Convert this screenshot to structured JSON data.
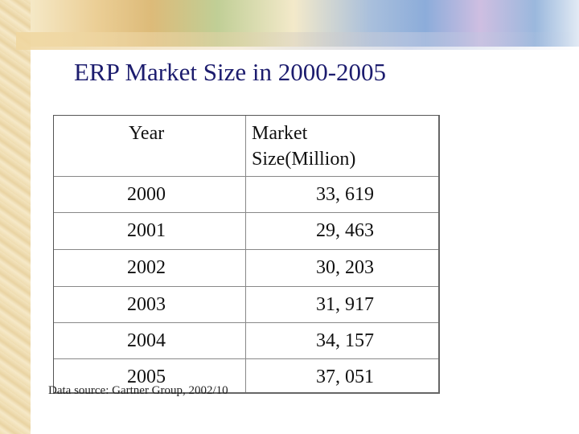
{
  "title": "ERP Market Size in 2000-2005",
  "table": {
    "header": [
      "Year",
      "Market Size(Million)"
    ],
    "rows": [
      [
        "2000",
        "33, 619"
      ],
      [
        "2001",
        "29, 463"
      ],
      [
        "2002",
        "30, 203"
      ],
      [
        "2003",
        "31, 917"
      ],
      [
        "2004",
        "34, 157"
      ],
      [
        "2005",
        "37, 051"
      ]
    ]
  },
  "note": "Data source: Gartner Group, 2002/10"
}
